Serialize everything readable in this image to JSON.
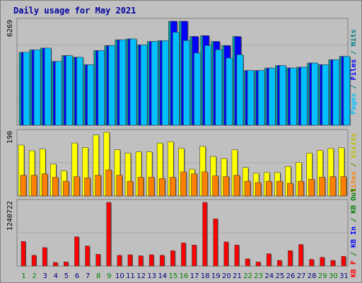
{
  "colors": {
    "background": "#c0c0c0",
    "title": "#0000a0",
    "hits": "#00a0a0",
    "files": "#0000ff",
    "pages": "#00c0ff",
    "visits": "#ffff00",
    "sites": "#ff8000",
    "kbin": "#0000ff",
    "kbout": "#008000",
    "kbf": "#ff0000",
    "weekend_day": "#008000",
    "weekday": "#000080"
  },
  "chart_data": {
    "type": "bar",
    "title": "Daily usage for May 2021",
    "categories": [
      "1",
      "2",
      "3",
      "4",
      "5",
      "6",
      "7",
      "8",
      "9",
      "10",
      "11",
      "12",
      "13",
      "14",
      "15",
      "16",
      "17",
      "18",
      "19",
      "20",
      "21",
      "22",
      "23",
      "24",
      "25",
      "26",
      "27",
      "28",
      "29",
      "30",
      "31"
    ],
    "weekend_days": [
      "1",
      "2",
      "8",
      "9",
      "15",
      "16",
      "22",
      "23",
      "29",
      "30"
    ],
    "panels": [
      {
        "id": "hits_files_pages",
        "ymax_label": "6269",
        "ymax": 6269,
        "axis_label_parts": [
          {
            "text": "Pages",
            "color": "#00c0ff"
          },
          {
            "text": " / ",
            "color": "#008080"
          },
          {
            "text": "Files",
            "color": "#0000ff"
          },
          {
            "text": " / ",
            "color": "#008080"
          },
          {
            "text": "Hits",
            "color": "#008080"
          }
        ],
        "series": [
          {
            "name": "Hits",
            "color": "#00a0a0",
            "values": [
              4400,
              4550,
              4650,
              3850,
              4200,
              4100,
              3650,
              4500,
              4800,
              5150,
              5200,
              4850,
              5050,
              5100,
              6269,
              6269,
              5350,
              5400,
              5050,
              4800,
              5350,
              3300,
              3300,
              3450,
              3600,
              3450,
              3500,
              3750,
              3650,
              3950,
              4150
            ]
          },
          {
            "name": "Files",
            "color": "#0000ff",
            "values": [
              4400,
              4550,
              4650,
              3850,
              4200,
              4100,
              3650,
              4500,
              4800,
              5150,
              5200,
              4850,
              5050,
              5100,
              6269,
              6269,
              5350,
              5400,
              5050,
              4800,
              5350,
              3300,
              3300,
              3450,
              3600,
              3450,
              3500,
              3750,
              3650,
              3950,
              4150
            ]
          },
          {
            "name": "Pages",
            "color": "#00c0ff",
            "values": [
              4400,
              4550,
              4650,
              3850,
              4200,
              4100,
              3650,
              4500,
              4800,
              5150,
              5200,
              4850,
              5050,
              5100,
              5600,
              5100,
              4350,
              4800,
              4550,
              4050,
              4250,
              3300,
              3300,
              3450,
              3600,
              3450,
              3500,
              3750,
              3650,
              3950,
              4150
            ]
          }
        ]
      },
      {
        "id": "visits_sites",
        "ymax_label": "190",
        "ymax": 190,
        "axis_label_parts": [
          {
            "text": "Sites",
            "color": "#ff8000"
          },
          {
            "text": " / ",
            "color": "#808000"
          },
          {
            "text": "Visits",
            "color": "#c0c000"
          }
        ],
        "series": [
          {
            "name": "Visits",
            "color": "#ffff00",
            "values": [
              152,
              135,
              140,
              95,
              75,
              158,
              145,
              182,
              190,
              138,
              128,
              132,
              132,
              158,
              162,
              142,
              80,
              148,
              118,
              112,
              138,
              85,
              68,
              70,
              70,
              88,
              100,
              128,
              136,
              142,
              144
            ]
          },
          {
            "name": "Sites",
            "color": "#ff8000",
            "values": [
              62,
              62,
              66,
              56,
              44,
              58,
              54,
              62,
              78,
              62,
              44,
              56,
              56,
              52,
              56,
              72,
              66,
              72,
              60,
              58,
              62,
              44,
              40,
              44,
              44,
              38,
              44,
              50,
              56,
              58,
              58
            ]
          }
        ]
      },
      {
        "id": "kbytes",
        "ymax_label": "1240722",
        "ymax": 1240722,
        "axis_label_parts": [
          {
            "text": "KB F",
            "color": "#ff0000"
          },
          {
            "text": " / ",
            "color": "#008000"
          },
          {
            "text": "KB In",
            "color": "#0000ff"
          },
          {
            "text": " / ",
            "color": "#008000"
          },
          {
            "text": "KB Out",
            "color": "#008000"
          }
        ],
        "series": [
          {
            "name": "KB F",
            "color": "#ff0000",
            "values": [
              480000,
              210000,
              360000,
              70000,
              80000,
              570000,
              390000,
              230000,
              1240722,
              210000,
              220000,
              200000,
              220000,
              210000,
              300000,
              450000,
              410000,
              1240722,
              920000,
              470000,
              410000,
              140000,
              80000,
              240000,
              110000,
              300000,
              420000,
              130000,
              170000,
              110000,
              190000
            ]
          }
        ]
      }
    ]
  }
}
